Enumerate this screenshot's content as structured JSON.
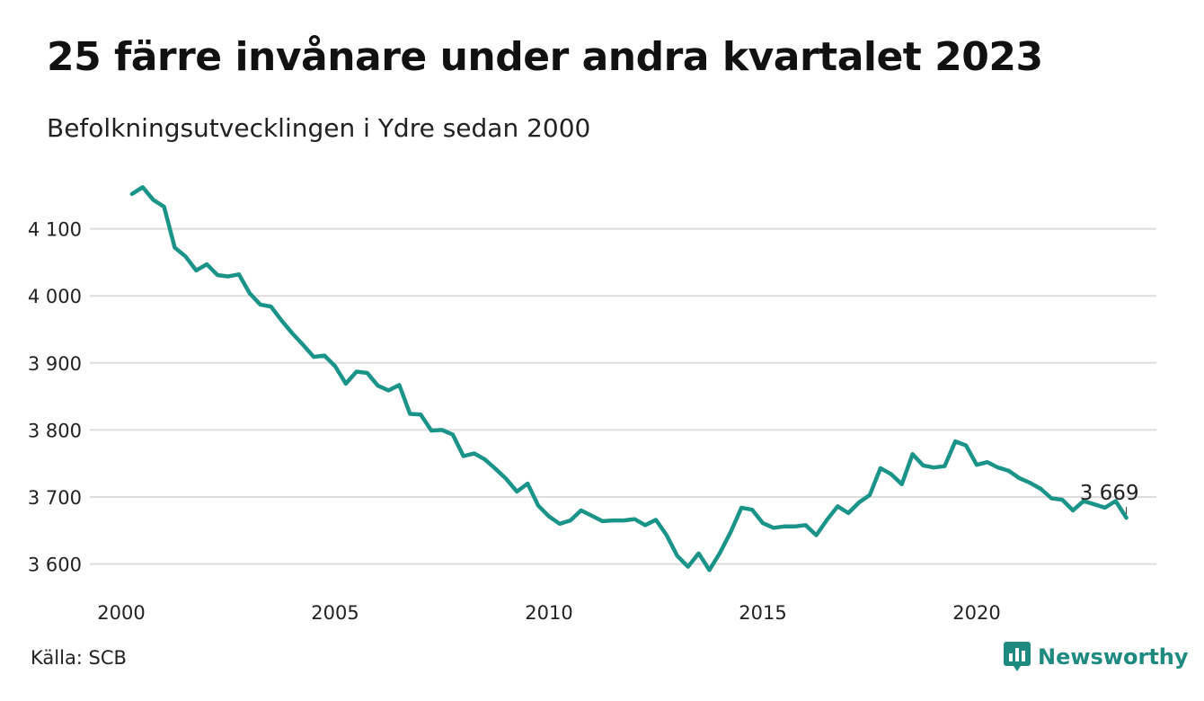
{
  "title": "25 färre invånare under andra kvartalet 2023",
  "subtitle": "Befolkningsutvecklingen i Ydre sedan 2000",
  "source": "Källa: SCB",
  "brand": "Newsworthy",
  "colors": {
    "line": "#1a9488",
    "grid": "#dddddd",
    "brand": "#1f8a80"
  },
  "chart_data": {
    "type": "line",
    "title": "25 färre invånare under andra kvartalet 2023",
    "subtitle": "Befolkningsutvecklingen i Ydre sedan 2000",
    "xlabel": "",
    "ylabel": "",
    "grid": true,
    "xlim": [
      2000,
      2024
    ],
    "ylim": [
      3580,
      4170
    ],
    "x_ticks": [
      2000,
      2005,
      2010,
      2015,
      2020
    ],
    "x_tick_labels": [
      "2000",
      "2005",
      "2010",
      "2015",
      "2020"
    ],
    "y_ticks": [
      3600,
      3700,
      3800,
      3900,
      4000,
      4100
    ],
    "y_tick_labels": [
      "3 600",
      "3 700",
      "3 800",
      "3 900",
      "4 000",
      "4 100"
    ],
    "end_label": "3 669",
    "series": [
      {
        "x": [
          2000.25,
          2000.5,
          2000.75,
          2001.0,
          2001.25,
          2001.5,
          2001.75,
          2002.0,
          2002.25,
          2002.5,
          2002.75,
          2003.0,
          2003.25,
          2003.5,
          2003.75,
          2004.0,
          2004.25,
          2004.5,
          2004.75,
          2005.0,
          2005.25,
          2005.5,
          2005.75,
          2006.0,
          2006.25,
          2006.5,
          2006.75,
          2007.0,
          2007.25,
          2007.5,
          2007.75,
          2008.0,
          2008.25,
          2008.5,
          2008.75,
          2009.0,
          2009.25,
          2009.5,
          2009.75,
          2010.0,
          2010.25,
          2010.5,
          2010.75,
          2011.0,
          2011.25,
          2011.5,
          2011.75,
          2012.0,
          2012.25,
          2012.5,
          2012.75,
          2013.0,
          2013.25,
          2013.5,
          2013.75,
          2014.0,
          2014.25,
          2014.5,
          2014.75,
          2015.0,
          2015.25,
          2015.5,
          2015.75,
          2016.0,
          2016.25,
          2016.5,
          2016.75,
          2017.0,
          2017.25,
          2017.5,
          2017.75,
          2018.0,
          2018.25,
          2018.5,
          2018.75,
          2019.0,
          2019.25,
          2019.5,
          2019.75,
          2020.0,
          2020.25,
          2020.5,
          2020.75,
          2021.0,
          2021.25,
          2021.5,
          2021.75,
          2022.0,
          2022.25,
          2022.5,
          2022.75,
          2023.0,
          2023.25,
          2023.5
        ],
        "values": [
          4152,
          4162,
          4143,
          4133,
          4072,
          4059,
          4038,
          4047,
          4031,
          4029,
          4032,
          4004,
          3987,
          3984,
          3963,
          3944,
          3927,
          3909,
          3911,
          3895,
          3869,
          3887,
          3885,
          3866,
          3859,
          3867,
          3824,
          3823,
          3799,
          3800,
          3793,
          3761,
          3765,
          3756,
          3742,
          3727,
          3708,
          3720,
          3687,
          3671,
          3660,
          3665,
          3680,
          3672,
          3664,
          3665,
          3665,
          3667,
          3658,
          3666,
          3643,
          3612,
          3596,
          3616,
          3591,
          3617,
          3648,
          3684,
          3681,
          3661,
          3654,
          3656,
          3656,
          3658,
          3643,
          3666,
          3686,
          3676,
          3692,
          3703,
          3743,
          3734,
          3719,
          3764,
          3747,
          3744,
          3746,
          3783,
          3777,
          3748,
          3752,
          3744,
          3739,
          3728,
          3721,
          3712,
          3698,
          3696,
          3680,
          3694,
          3689,
          3684,
          3694,
          3669
        ]
      }
    ]
  }
}
